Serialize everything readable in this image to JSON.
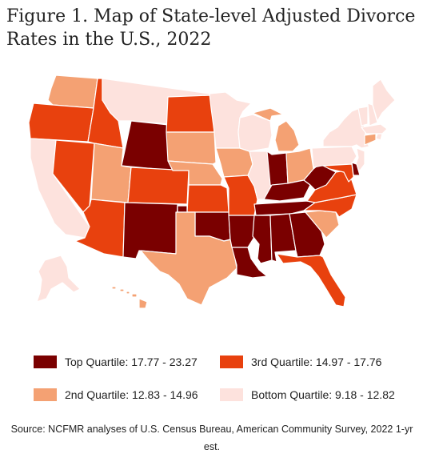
{
  "title": "Figure 1. Map of State-level Adjusted Divorce Rates in the U.S., 2022",
  "colors": {
    "top": "#7a0000",
    "third": "#e8410e",
    "second": "#f4a173",
    "bottom": "#fde2dd"
  },
  "legend": [
    {
      "label": "Top Quartile: 17.77 - 23.27",
      "quartile": "top"
    },
    {
      "label": "3rd Quartile: 14.97 - 17.76",
      "quartile": "third"
    },
    {
      "label": "2nd Quartile: 12.83 - 14.96",
      "quartile": "second"
    },
    {
      "label": "Bottom Quartile: 9.18 - 12.82",
      "quartile": "bottom"
    }
  ],
  "states": {
    "WA": "second",
    "OR": "third",
    "CA": "bottom",
    "NV": "third",
    "ID": "third",
    "MT": "bottom",
    "WY": "top",
    "UT": "second",
    "AZ": "third",
    "CO": "third",
    "NM": "top",
    "ND": "third",
    "SD": "second",
    "NE": "second",
    "KS": "third",
    "OK": "top",
    "TX": "second",
    "MN": "bottom",
    "IA": "second",
    "MO": "third",
    "AR": "top",
    "LA": "top",
    "WI": "bottom",
    "IL": "bottom",
    "MI": "second",
    "IN": "top",
    "OH": "second",
    "KY": "top",
    "TN": "top",
    "MS": "top",
    "AL": "top",
    "GA": "top",
    "FL": "third",
    "SC": "second",
    "NC": "third",
    "VA": "third",
    "WV": "top",
    "PA": "bottom",
    "NY": "bottom",
    "VT": "bottom",
    "NH": "bottom",
    "ME": "bottom",
    "MA": "bottom",
    "RI": "bottom",
    "CT": "second",
    "NJ": "bottom",
    "DE": "top",
    "MD": "third",
    "AK": "bottom",
    "HI": "second"
  },
  "source": "Source: NCFMR analyses of U.S. Census Bureau, American Community Survey, 2022 1-yr est."
}
